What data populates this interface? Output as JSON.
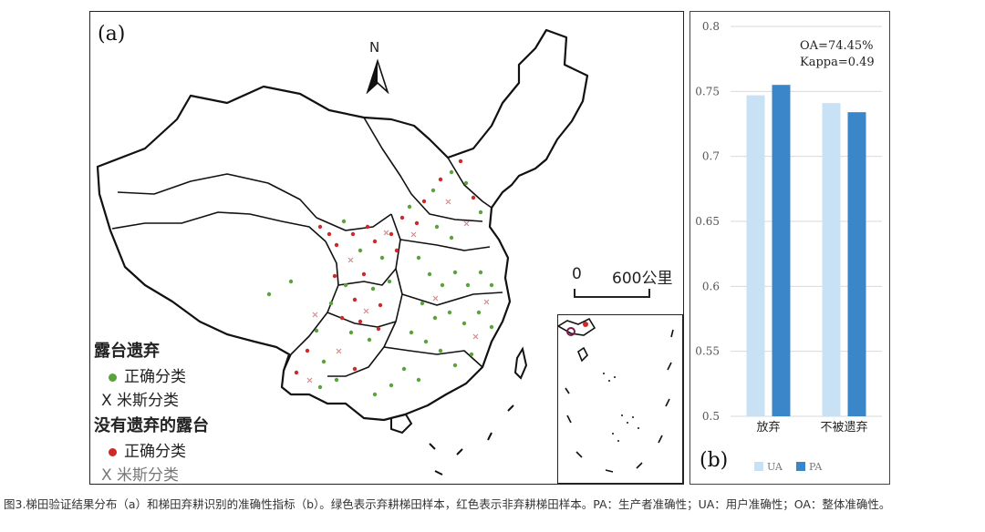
{
  "panel_a": {
    "label": "(a)",
    "north_letter": "N",
    "scale": {
      "zero": "0",
      "max": "600公里"
    },
    "legend": {
      "group1_title": "露台遗弃",
      "group1_correct": "正确分类",
      "group1_mis": "X 米斯分类",
      "group2_title": "没有遗弃的露台",
      "group2_correct": "正确分类",
      "group2_mis": "X 米斯分类"
    },
    "colors": {
      "green": "#5aa23a",
      "red": "#d02828",
      "mis": "#c98f8f"
    }
  },
  "panel_b": {
    "label": "(b)",
    "stats_oa": "OA=74.45%",
    "stats_kappa": "Kappa=0.49"
  },
  "chart_data": {
    "type": "bar",
    "categories": [
      "放弃",
      "不被遗弃"
    ],
    "series": [
      {
        "name": "UA",
        "values": [
          0.747,
          0.741
        ],
        "color": "#c9e1f5"
      },
      {
        "name": "PA",
        "values": [
          0.755,
          0.734
        ],
        "color": "#3b86c9"
      }
    ],
    "ylim": [
      0.5,
      0.8
    ],
    "yticks": [
      "0.5",
      "0.55",
      "0.6",
      "0.65",
      "0.7",
      "0.75",
      "0.8"
    ],
    "grid": true,
    "legend_position": "bottom"
  },
  "caption": "图3.梯田验证结果分布（a）和梯田弃耕识别的准确性指标（b）。绿色表示弃耕梯田样本，红色表示非弃耕梯田样本。PA：生产者准确性；UA：用户准确性；OA：整体准确性。"
}
